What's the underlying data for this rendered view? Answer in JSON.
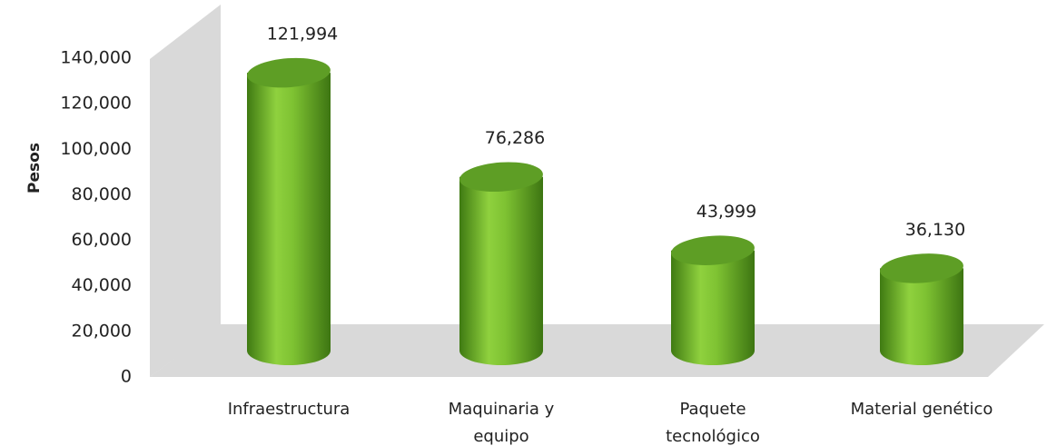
{
  "chart_data": {
    "type": "bar",
    "y_label": "Pesos",
    "categories": [
      "Infraestructura",
      "Maquinaria y\nequipo",
      "Paquete\ntecnológico",
      "Material genético"
    ],
    "values": [
      121994,
      76286,
      43999,
      36130
    ],
    "value_labels": [
      "121,994",
      "76,286",
      "43,999",
      "36,130"
    ],
    "color": "#6ab42d",
    "ylim": [
      0,
      140000
    ],
    "yticks": [
      0,
      {
        "value": 20000,
        "label": "20,000"
      },
      {
        "value": 40000,
        "label": "40,000"
      },
      {
        "value": 60000,
        "label": "60,000"
      },
      {
        "value": 80000,
        "label": "80,000"
      },
      {
        "value": 100000,
        "label": "100,000"
      },
      {
        "value": 120000,
        "label": "120,000"
      },
      {
        "value": 140000,
        "label": "140,000"
      }
    ]
  }
}
